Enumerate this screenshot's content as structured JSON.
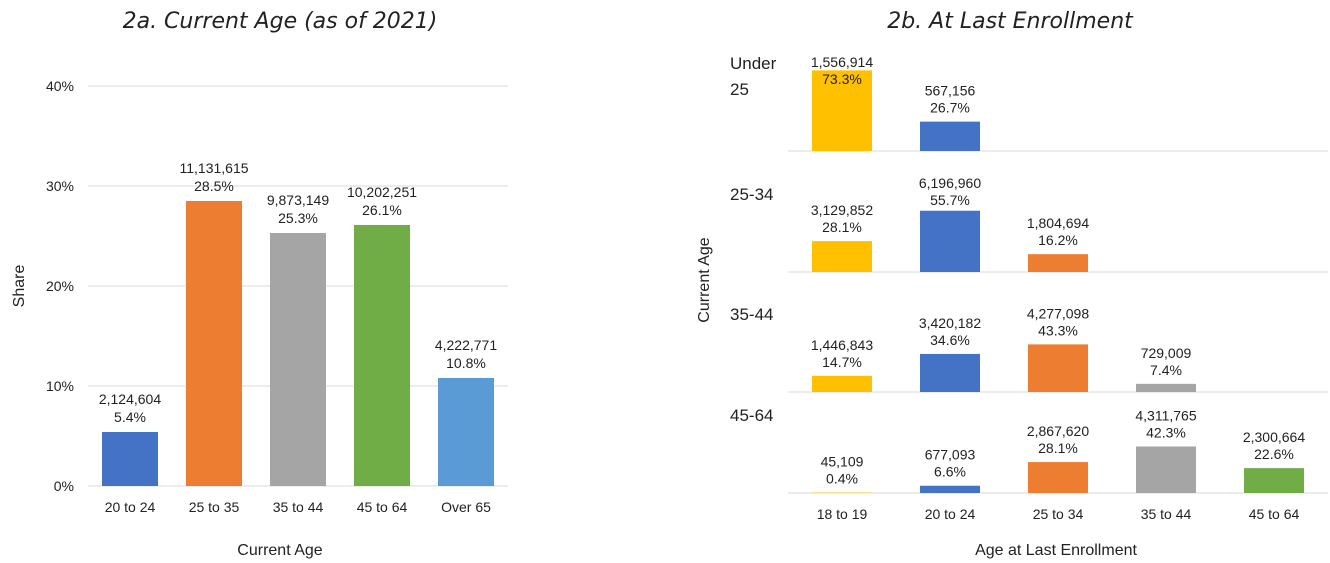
{
  "chart_data": [
    {
      "type": "bar",
      "title": "2a. Current Age (as of 2021)",
      "xlabel": "Current Age",
      "ylabel": "Share",
      "ylim": [
        0,
        40
      ],
      "yticks": [
        "0%",
        "10%",
        "20%",
        "30%",
        "40%"
      ],
      "ytick_values": [
        0,
        10,
        20,
        30,
        40
      ],
      "grid": true,
      "categories": [
        "20 to 24",
        "25 to 35",
        "35 to 44",
        "45 to 64",
        "Over 65"
      ],
      "values": [
        5.4,
        28.5,
        25.3,
        26.1,
        10.8
      ],
      "counts": [
        "2,124,604",
        "11,131,615",
        "9,873,149",
        "10,202,251",
        "4,222,771"
      ],
      "percent_labels": [
        "5.4%",
        "28.5%",
        "25.3%",
        "26.1%",
        "10.8%"
      ],
      "colors": [
        "#4472c4",
        "#ed7d31",
        "#a5a5a5",
        "#70ad47",
        "#5b9bd5"
      ]
    },
    {
      "type": "bar",
      "title": "2b. At Last Enrollment",
      "xlabel": "Age at Last Enrollment",
      "ylabel": "Current Age",
      "categories": [
        "18 to 19",
        "20 to 24",
        "25 to 34",
        "35 to 44",
        "45 to 64"
      ],
      "colors": [
        "#ffc000",
        "#4472c4",
        "#ed7d31",
        "#a5a5a5",
        "#70ad47"
      ],
      "rows": [
        {
          "label": "Under 25",
          "values": [
            73.3,
            26.7
          ],
          "counts": [
            "1,556,914",
            "567,156"
          ],
          "percent_labels": [
            "73.3%",
            "26.7%"
          ]
        },
        {
          "label": "25-34",
          "values": [
            28.1,
            55.7,
            16.2
          ],
          "counts": [
            "3,129,852",
            "6,196,960",
            "1,804,694"
          ],
          "percent_labels": [
            "28.1%",
            "55.7%",
            "16.2%"
          ]
        },
        {
          "label": "35-44",
          "values": [
            14.7,
            34.6,
            43.3,
            7.4
          ],
          "counts": [
            "1,446,843",
            "3,420,182",
            "4,277,098",
            "729,009"
          ],
          "percent_labels": [
            "14.7%",
            "34.6%",
            "43.3%",
            "7.4%"
          ]
        },
        {
          "label": "45-64",
          "values": [
            0.4,
            6.6,
            28.1,
            42.3,
            22.6
          ],
          "counts": [
            "45,109",
            "677,093",
            "2,867,620",
            "4,311,765",
            "2,300,664"
          ],
          "percent_labels": [
            "0.4%",
            "6.6%",
            "28.1%",
            "42.3%",
            "22.6%"
          ]
        }
      ]
    }
  ]
}
